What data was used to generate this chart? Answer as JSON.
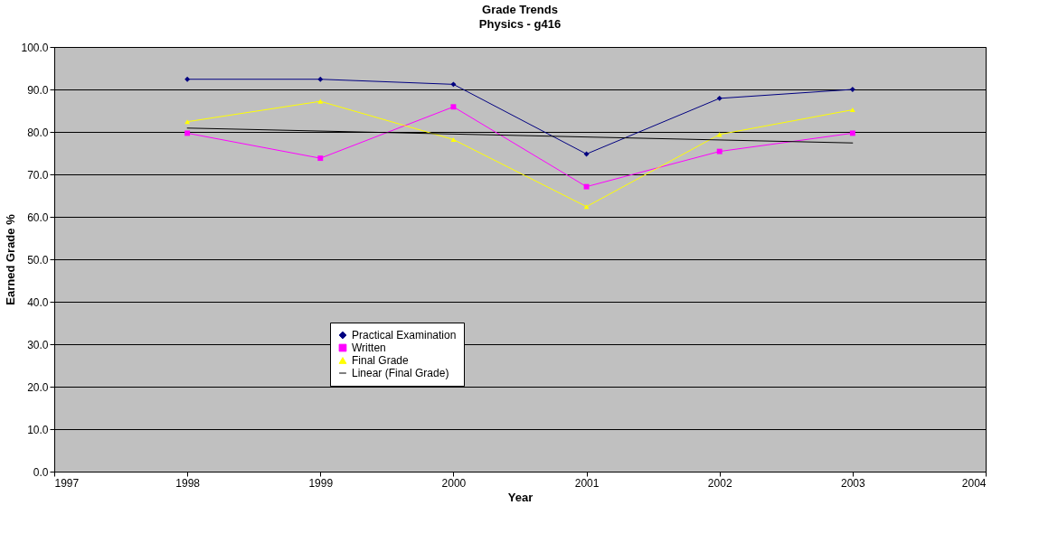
{
  "chart_data": {
    "type": "line",
    "title": "Grade Trends",
    "subtitle": "Physics - g416",
    "xlabel": "Year",
    "ylabel": "Earned Grade %",
    "x": [
      1998,
      1999,
      2000,
      2001,
      2002,
      2003
    ],
    "series": [
      {
        "name": "Practical Examination",
        "color": "#000080",
        "marker": "diamond",
        "values": [
          92.4,
          92.4,
          91.2,
          74.8,
          87.9,
          90.0
        ]
      },
      {
        "name": "Written",
        "color": "#ff00ff",
        "marker": "square",
        "values": [
          79.7,
          73.8,
          85.9,
          67.1,
          75.4,
          79.7
        ]
      },
      {
        "name": "Final Grade",
        "color": "#ffff00",
        "marker": "triangle",
        "values": [
          82.4,
          87.2,
          78.2,
          62.4,
          79.4,
          85.2
        ]
      },
      {
        "name": "Linear (Final Grade)",
        "color": "#000000",
        "type": "line",
        "marker": "none",
        "x": [
          1998,
          2003
        ],
        "values": [
          80.9,
          77.4
        ]
      }
    ],
    "xlim": [
      1997,
      2004
    ],
    "xticks": [
      1997,
      1998,
      1999,
      2000,
      2001,
      2002,
      2003,
      2004
    ],
    "ylim": [
      0,
      100
    ],
    "yticks": [
      {
        "value": 0,
        "label": "0.0"
      },
      {
        "value": 10,
        "label": "10.0"
      },
      {
        "value": 20,
        "label": "20.0"
      },
      {
        "value": 30,
        "label": "30.0"
      },
      {
        "value": 40,
        "label": "40.0"
      },
      {
        "value": 50,
        "label": "50.0"
      },
      {
        "value": 60,
        "label": "60.0"
      },
      {
        "value": 70,
        "label": "70.0"
      },
      {
        "value": 80,
        "label": "80.0"
      },
      {
        "value": 90,
        "label": "90.0"
      },
      {
        "value": 100,
        "label": "100.0"
      }
    ],
    "grid": "y",
    "legend": "bottom left"
  }
}
